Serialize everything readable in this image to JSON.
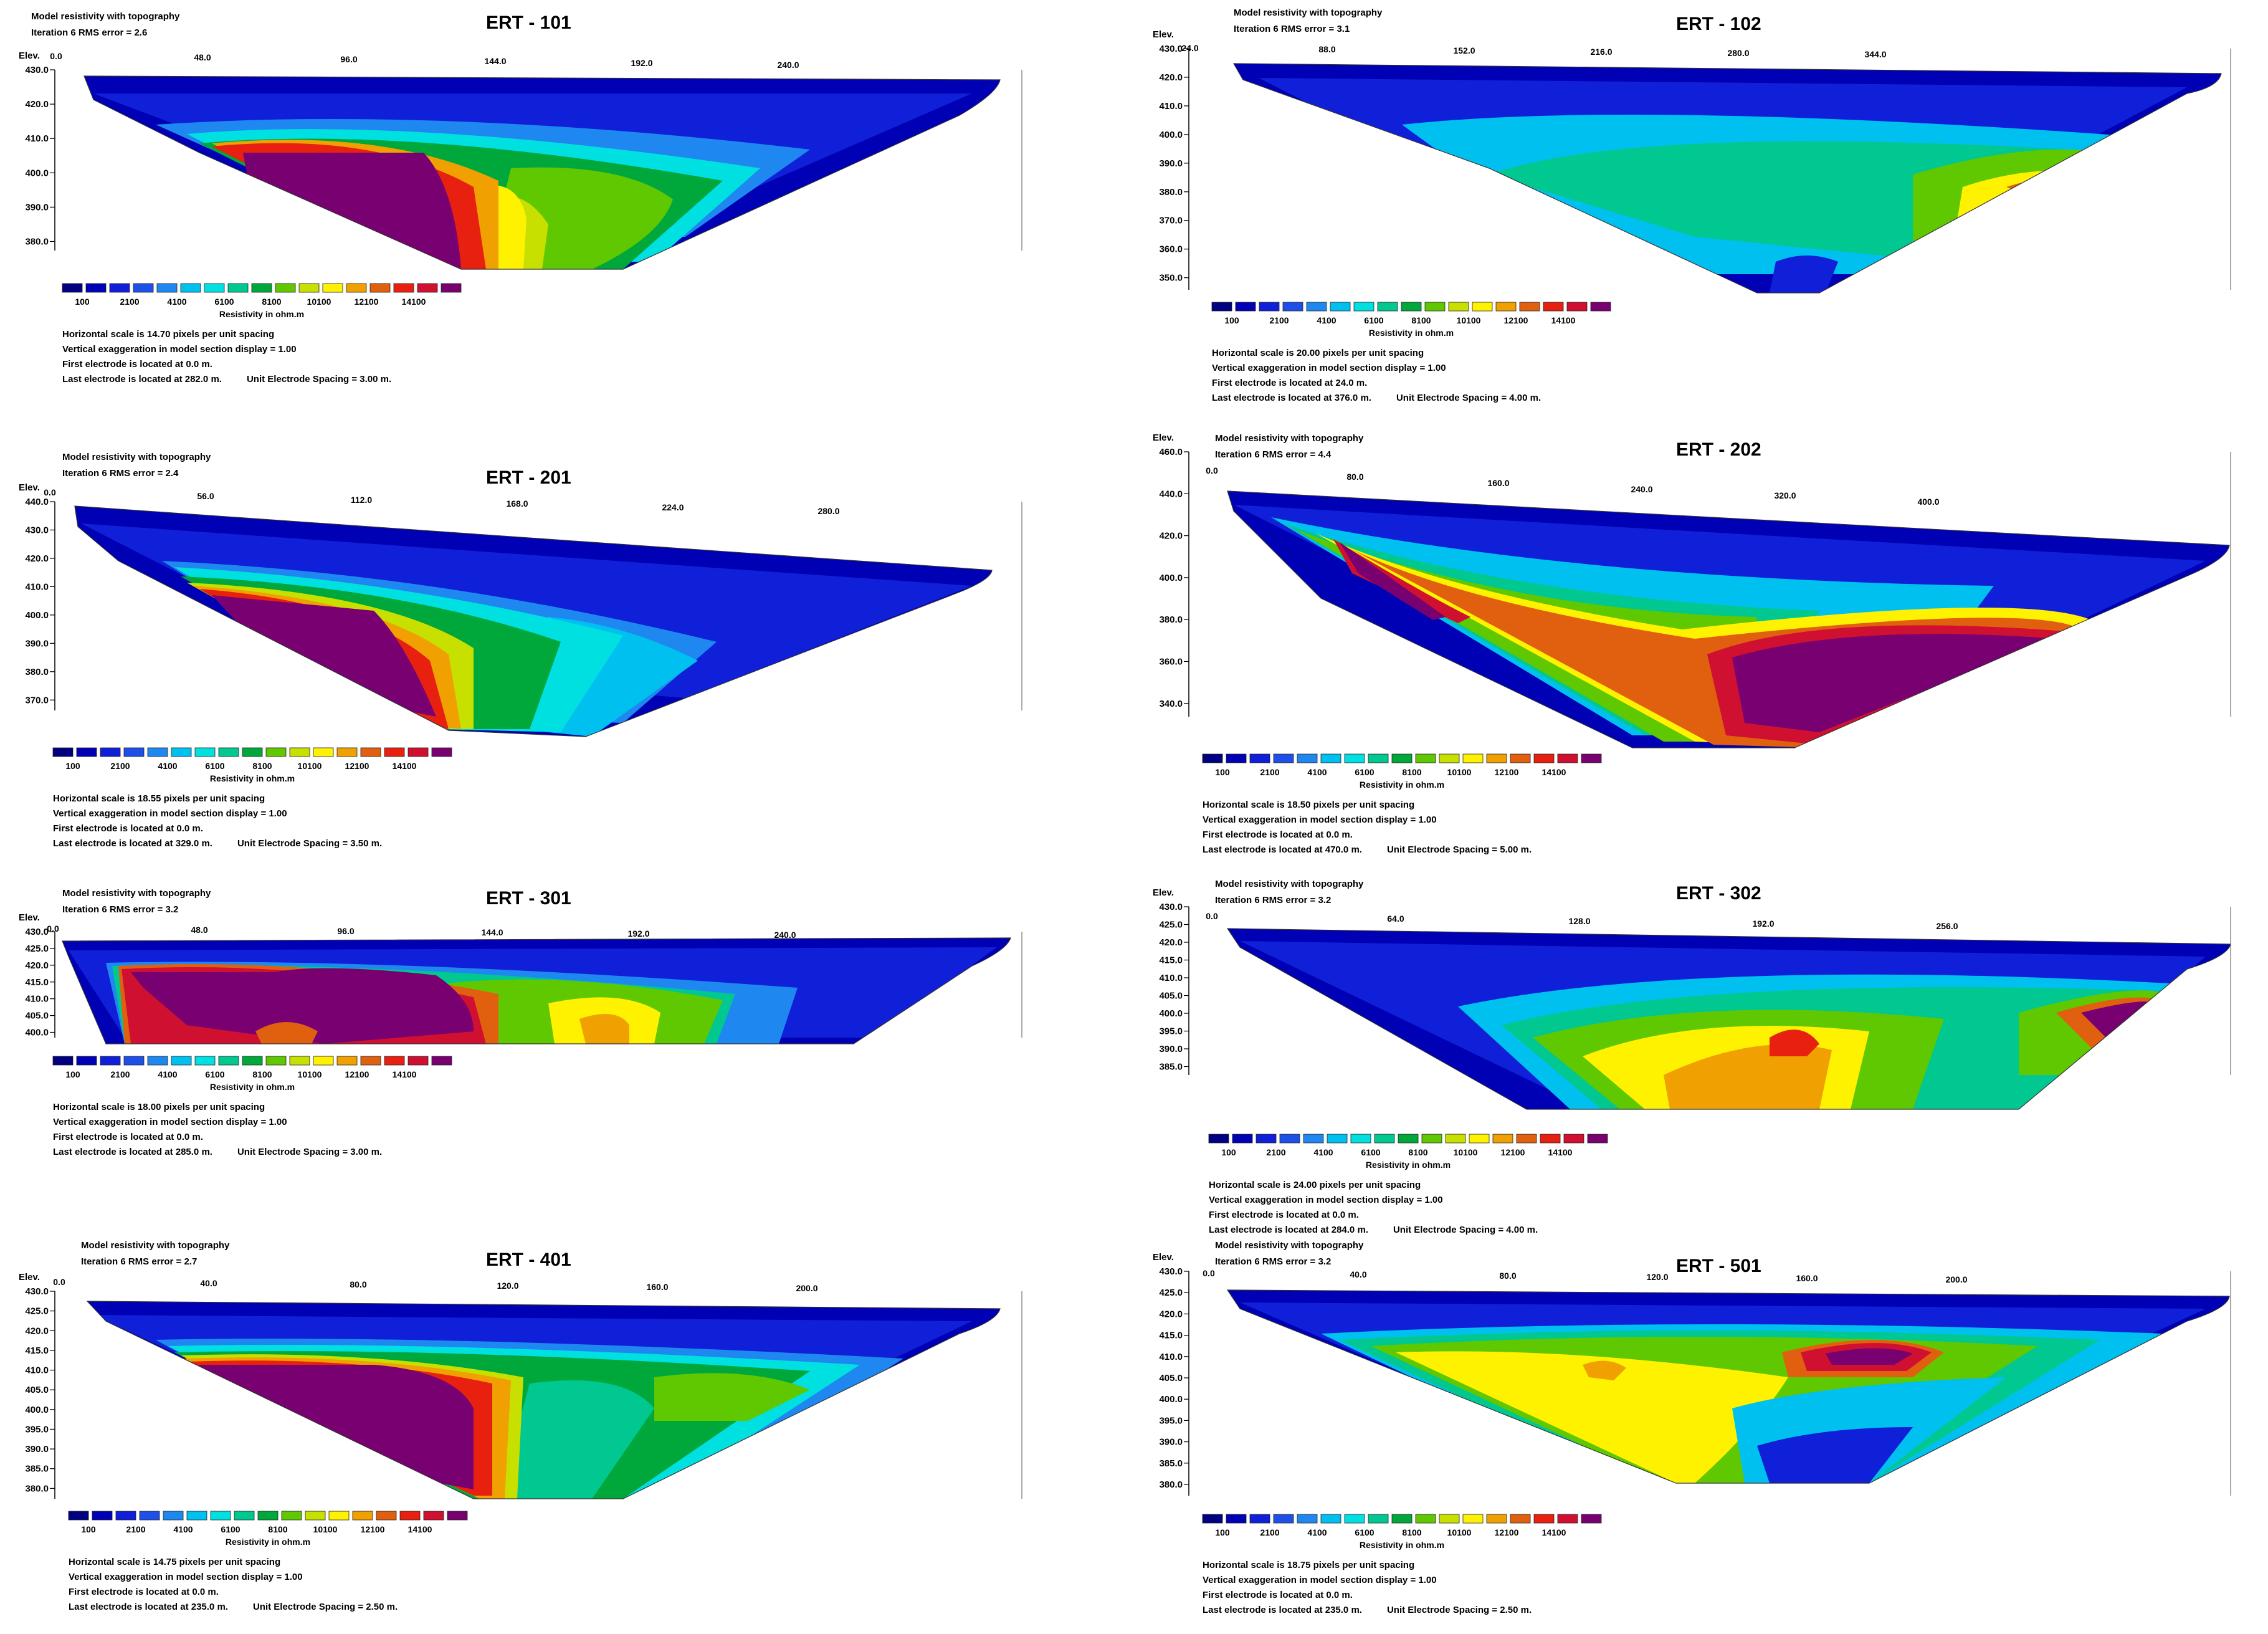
{
  "palette": [
    "#000080",
    "#0000B4",
    "#1020D8",
    "#1E50E8",
    "#1E88F0",
    "#00C0F0",
    "#00E0E0",
    "#00C890",
    "#00A83C",
    "#60C800",
    "#C8E000",
    "#FFF200",
    "#F0A000",
    "#E06010",
    "#E82010",
    "#D01030",
    "#780070"
  ],
  "legend": {
    "ticks": [
      "100",
      "2100",
      "4100",
      "6100",
      "8100",
      "10100",
      "12100",
      "14100"
    ],
    "title": "Resistivity in ohm.m"
  },
  "common": {
    "header": "Model resistivity with topography",
    "elev_label": "Elev.",
    "vert_exag": "Vertical exaggeration in model section display = 1.00"
  },
  "panels": [
    {
      "title": "ERT - 101",
      "rms": "Iteration 6 RMS error = 2.6",
      "hscale": "Horizontal scale is 14.70 pixels per unit spacing",
      "first": "First electrode is located at 0.0  m.",
      "last": "Last electrode is located at 282.0 m.",
      "spacing": "Unit Electrode Spacing = 3.00 m.",
      "dist_ticks": [
        "0.0",
        "48.0",
        "96.0",
        "144.0",
        "192.0",
        "240.0"
      ],
      "elev_ticks": [
        "430.0",
        "420.0",
        "410.0",
        "400.0",
        "390.0",
        "380.0"
      ]
    },
    {
      "title": "ERT - 102",
      "rms": "Iteration 6 RMS error = 3.1",
      "hscale": "Horizontal scale is 20.00 pixels per unit spacing",
      "first": "First electrode is located at 24.0  m.",
      "last": "Last electrode is located at 376.0 m.",
      "spacing": "Unit Electrode Spacing = 4.00 m.",
      "dist_ticks": [
        "24.0",
        "88.0",
        "152.0",
        "216.0",
        "280.0",
        "344.0"
      ],
      "elev_ticks": [
        "430.0",
        "420.0",
        "410.0",
        "400.0",
        "390.0",
        "380.0",
        "370.0",
        "360.0",
        "350.0"
      ]
    },
    {
      "title": "ERT - 201",
      "rms": "Iteration 6 RMS error = 2.4",
      "hscale": "Horizontal scale is 18.55 pixels per unit spacing",
      "first": "First electrode is located at 0.0  m.",
      "last": "Last electrode is located at 329.0 m.",
      "spacing": "Unit Electrode Spacing = 3.50 m.",
      "dist_ticks": [
        "0.0",
        "56.0",
        "112.0",
        "168.0",
        "224.0",
        "280.0"
      ],
      "elev_ticks": [
        "440.0",
        "430.0",
        "420.0",
        "410.0",
        "400.0",
        "390.0",
        "380.0",
        "370.0"
      ]
    },
    {
      "title": "ERT - 202",
      "rms": "Iteration 6 RMS error = 4.4",
      "hscale": "Horizontal scale is 18.50 pixels per unit spacing",
      "first": "First electrode is located at 0.0  m.",
      "last": "Last electrode is located at 470.0 m.",
      "spacing": "Unit Electrode Spacing = 5.00 m.",
      "dist_ticks": [
        "0.0",
        "80.0",
        "160.0",
        "240.0",
        "320.0",
        "400.0"
      ],
      "elev_ticks": [
        "460.0",
        "440.0",
        "420.0",
        "400.0",
        "380.0",
        "360.0",
        "340.0"
      ]
    },
    {
      "title": "ERT - 301",
      "rms": "Iteration 6 RMS error = 3.2",
      "hscale": "Horizontal scale is 18.00 pixels per unit spacing",
      "first": "First electrode is located at 0.0  m.",
      "last": "Last electrode is located at 285.0 m.",
      "spacing": "Unit Electrode Spacing = 3.00 m.",
      "dist_ticks": [
        "0.0",
        "48.0",
        "96.0",
        "144.0",
        "192.0",
        "240.0"
      ],
      "elev_ticks": [
        "430.0",
        "425.0",
        "420.0",
        "415.0",
        "410.0",
        "405.0",
        "400.0"
      ]
    },
    {
      "title": "ERT - 302",
      "rms": "Iteration 6 RMS error = 3.2",
      "hscale": "Horizontal scale is 24.00 pixels per unit spacing",
      "first": "First electrode is located at 0.0  m.",
      "last": "Last electrode is located at 284.0 m.",
      "spacing": "Unit Electrode Spacing = 4.00 m.",
      "dist_ticks": [
        "0.0",
        "64.0",
        "128.0",
        "192.0",
        "256.0"
      ],
      "elev_ticks": [
        "430.0",
        "425.0",
        "420.0",
        "415.0",
        "410.0",
        "405.0",
        "400.0",
        "395.0",
        "390.0",
        "385.0"
      ]
    },
    {
      "title": "ERT - 401",
      "rms": "Iteration 6 RMS error = 2.7",
      "hscale": "Horizontal scale is 14.75 pixels per unit spacing",
      "first": "First electrode is located at 0.0  m.",
      "last": "Last electrode is located at 235.0 m.",
      "spacing": "Unit Electrode Spacing = 2.50 m.",
      "dist_ticks": [
        "0.0",
        "40.0",
        "80.0",
        "120.0",
        "160.0",
        "200.0"
      ],
      "elev_ticks": [
        "430.0",
        "425.0",
        "420.0",
        "415.0",
        "410.0",
        "405.0",
        "400.0",
        "395.0",
        "390.0",
        "385.0",
        "380.0"
      ]
    },
    {
      "title": "ERT - 501",
      "rms": "Iteration 6 RMS error = 3.2",
      "hscale": "Horizontal scale is 18.75 pixels per unit spacing",
      "first": "First electrode is located at 0.0  m.",
      "last": "Last electrode is located at 235.0 m.",
      "spacing": "Unit Electrode Spacing = 2.50 m.",
      "dist_ticks": [
        "0.0",
        "40.0",
        "80.0",
        "120.0",
        "160.0",
        "200.0"
      ],
      "elev_ticks": [
        "430.0",
        "425.0",
        "420.0",
        "415.0",
        "410.0",
        "405.0",
        "400.0",
        "395.0",
        "390.0",
        "385.0",
        "380.0"
      ]
    }
  ],
  "chart_data": [
    {
      "type": "heatmap",
      "title": "ERT - 101",
      "xlabel": "",
      "ylabel": "Elev.",
      "x_ticks": [
        0,
        48,
        96,
        144,
        192,
        240
      ],
      "y_ticks": [
        430,
        420,
        410,
        400,
        390,
        380
      ],
      "colorbar_label": "Resistivity in ohm.m",
      "colorbar_ticks": [
        100,
        2100,
        4100,
        6100,
        8100,
        10100,
        12100,
        14100
      ]
    },
    {
      "type": "heatmap",
      "title": "ERT - 102",
      "xlabel": "",
      "ylabel": "Elev.",
      "x_ticks": [
        24,
        88,
        152,
        216,
        280,
        344
      ],
      "y_ticks": [
        430,
        420,
        410,
        400,
        390,
        380,
        370,
        360,
        350
      ],
      "colorbar_label": "Resistivity in ohm.m",
      "colorbar_ticks": [
        100,
        2100,
        4100,
        6100,
        8100,
        10100,
        12100,
        14100
      ]
    },
    {
      "type": "heatmap",
      "title": "ERT - 201",
      "xlabel": "",
      "ylabel": "Elev.",
      "x_ticks": [
        0,
        56,
        112,
        168,
        224,
        280
      ],
      "y_ticks": [
        440,
        430,
        420,
        410,
        400,
        390,
        380,
        370
      ],
      "colorbar_label": "Resistivity in ohm.m",
      "colorbar_ticks": [
        100,
        2100,
        4100,
        6100,
        8100,
        10100,
        12100,
        14100
      ]
    },
    {
      "type": "heatmap",
      "title": "ERT - 202",
      "xlabel": "",
      "ylabel": "Elev.",
      "x_ticks": [
        0,
        80,
        160,
        240,
        320,
        400
      ],
      "y_ticks": [
        460,
        440,
        420,
        400,
        380,
        360,
        340
      ],
      "colorbar_label": "Resistivity in ohm.m",
      "colorbar_ticks": [
        100,
        2100,
        4100,
        6100,
        8100,
        10100,
        12100,
        14100
      ]
    },
    {
      "type": "heatmap",
      "title": "ERT - 301",
      "xlabel": "",
      "ylabel": "Elev.",
      "x_ticks": [
        0,
        48,
        96,
        144,
        192,
        240
      ],
      "y_ticks": [
        430,
        425,
        420,
        415,
        410,
        405,
        400
      ],
      "colorbar_label": "Resistivity in ohm.m",
      "colorbar_ticks": [
        100,
        2100,
        4100,
        6100,
        8100,
        10100,
        12100,
        14100
      ]
    },
    {
      "type": "heatmap",
      "title": "ERT - 302",
      "xlabel": "",
      "ylabel": "Elev.",
      "x_ticks": [
        0,
        64,
        128,
        192,
        256
      ],
      "y_ticks": [
        430,
        425,
        420,
        415,
        410,
        405,
        400,
        395,
        390,
        385
      ],
      "colorbar_label": "Resistivity in ohm.m",
      "colorbar_ticks": [
        100,
        2100,
        4100,
        6100,
        8100,
        10100,
        12100,
        14100
      ]
    },
    {
      "type": "heatmap",
      "title": "ERT - 401",
      "xlabel": "",
      "ylabel": "Elev.",
      "x_ticks": [
        0,
        40,
        80,
        120,
        160,
        200
      ],
      "y_ticks": [
        430,
        425,
        420,
        415,
        410,
        405,
        400,
        395,
        390,
        385,
        380
      ],
      "colorbar_label": "Resistivity in ohm.m",
      "colorbar_ticks": [
        100,
        2100,
        4100,
        6100,
        8100,
        10100,
        12100,
        14100
      ]
    },
    {
      "type": "heatmap",
      "title": "ERT - 501",
      "xlabel": "",
      "ylabel": "Elev.",
      "x_ticks": [
        0,
        40,
        80,
        120,
        160,
        200
      ],
      "y_ticks": [
        430,
        425,
        420,
        415,
        410,
        405,
        400,
        395,
        390,
        385,
        380
      ],
      "colorbar_label": "Resistivity in ohm.m",
      "colorbar_ticks": [
        100,
        2100,
        4100,
        6100,
        8100,
        10100,
        12100,
        14100
      ]
    }
  ]
}
